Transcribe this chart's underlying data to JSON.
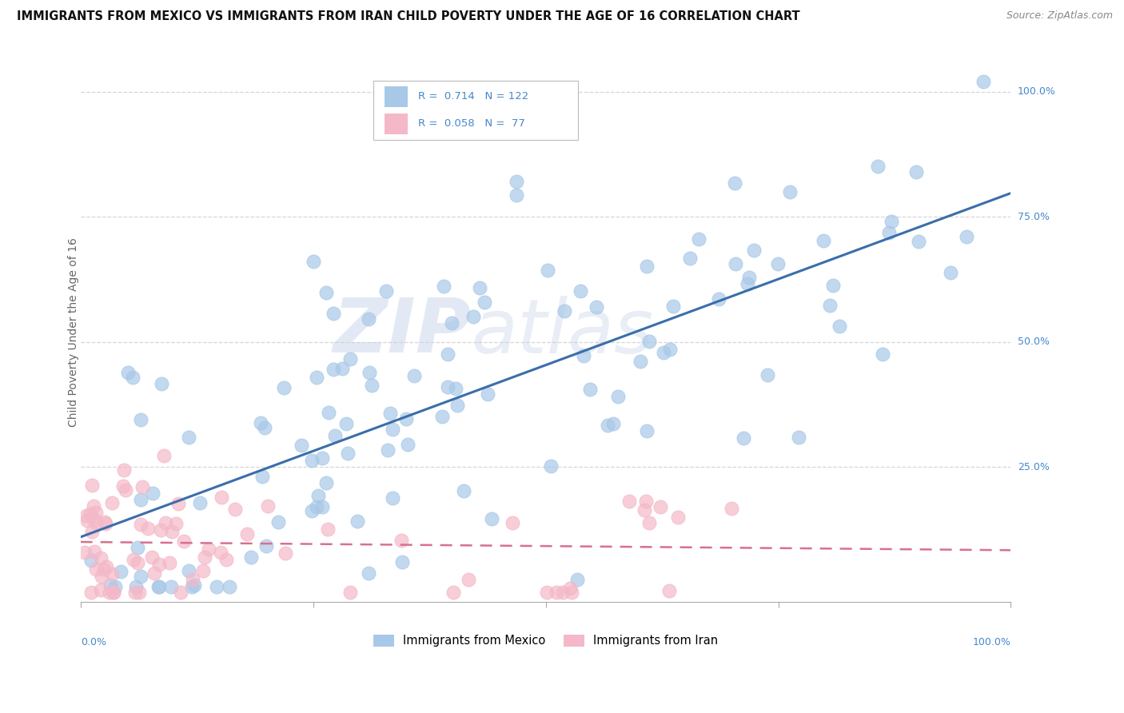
{
  "title": "IMMIGRANTS FROM MEXICO VS IMMIGRANTS FROM IRAN CHILD POVERTY UNDER THE AGE OF 16 CORRELATION CHART",
  "source": "Source: ZipAtlas.com",
  "ylabel": "Child Poverty Under the Age of 16",
  "watermark_bold": "ZIP",
  "watermark_light": "atlas",
  "legend_mexico": "Immigrants from Mexico",
  "legend_iran": "Immigrants from Iran",
  "R_mexico": 0.714,
  "N_mexico": 122,
  "R_iran": 0.058,
  "N_iran": 77,
  "blue_color": "#a8c8e8",
  "blue_line": "#3a6eaa",
  "pink_color": "#f4b8c8",
  "pink_line": "#d87090",
  "grid_color": "#cccccc",
  "label_color": "#4488cc",
  "seed_mexico": 12,
  "seed_iran": 99
}
